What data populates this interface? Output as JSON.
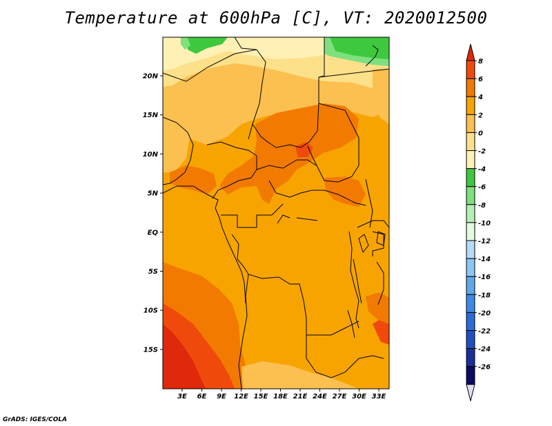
{
  "title": "Temperature at 600hPa [C], VT: 2020012500",
  "credit": "GrADS: IGES/COLA",
  "map": {
    "lat_labels": [
      "20N",
      "15N",
      "10N",
      "5N",
      "EQ",
      "5S",
      "10S",
      "15S"
    ],
    "lon_labels": [
      "3E",
      "6E",
      "9E",
      "12E",
      "15E",
      "18E",
      "21E",
      "24E",
      "27E",
      "30E",
      "33E"
    ],
    "colors": {
      "plus2_4": "#f7a400",
      "plus4_6": "#f27a00",
      "plus6_8": "#ef4a0c",
      "zero_2": "#fbc04f",
      "minus2_0": "#fde08a",
      "minus4_minus2": "#fff0b5",
      "minus6_minus4": "#3ec83e",
      "minus8_minus6": "#7ee07e"
    }
  },
  "colorbar": {
    "labels": [
      "8",
      "6",
      "4",
      "2",
      "0",
      "-2",
      "-4",
      "-6",
      "-8",
      "-10",
      "-12",
      "-14",
      "-16",
      "-18",
      "-20",
      "-22",
      "-24",
      "-26"
    ],
    "colors": [
      "#e0280a",
      "#ef4a0c",
      "#f27a00",
      "#f7a400",
      "#fbc04f",
      "#fde08a",
      "#fff0b5",
      "#3ec83e",
      "#7ee07e",
      "#b4f0b4",
      "#e2fae2",
      "#b4dcf8",
      "#8cc6f4",
      "#5fa8ec",
      "#3c8ce4",
      "#2a6cd8",
      "#1e50c0",
      "#1a2f9a",
      "#0c0a66",
      "#e4dcf4"
    ]
  }
}
